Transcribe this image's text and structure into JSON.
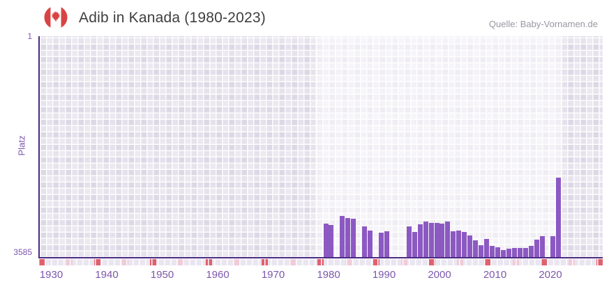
{
  "header": {
    "title": "Adib in Kanada (1980-2023)",
    "source": "Quelle: Baby-Vornamen.de"
  },
  "chart_data": {
    "type": "bar",
    "title": "Adib in Kanada (1980-2023)",
    "xlabel": "",
    "ylabel": "Platz",
    "y_axis": {
      "top_label": "1",
      "bottom_label": "3585",
      "min": 1,
      "max": 3585,
      "inverted": true,
      "note": "rank 1 at top, rank 3585 near baseline"
    },
    "x_ticks": [
      1930,
      1940,
      1950,
      1960,
      1970,
      1980,
      1990,
      2000,
      2010,
      2020
    ],
    "x_range": [
      1928,
      2031
    ],
    "grid": "checkered background, white gridlines",
    "legend": "none",
    "highlight_band_years": [
      1977.6,
      2022.1
    ],
    "series": [
      {
        "name": "Platz",
        "points": [
          {
            "year": 1980,
            "rank": 3105
          },
          {
            "year": 1981,
            "rank": 3120
          },
          {
            "year": 1983,
            "rank": 2970
          },
          {
            "year": 1984,
            "rank": 3010
          },
          {
            "year": 1985,
            "rank": 3020
          },
          {
            "year": 1987,
            "rank": 3145
          },
          {
            "year": 1988,
            "rank": 3215
          },
          {
            "year": 1990,
            "rank": 3255
          },
          {
            "year": 1991,
            "rank": 3225
          },
          {
            "year": 1995,
            "rank": 3145
          },
          {
            "year": 1996,
            "rank": 3240
          },
          {
            "year": 1997,
            "rank": 3110
          },
          {
            "year": 1998,
            "rank": 3060
          },
          {
            "year": 1999,
            "rank": 3090
          },
          {
            "year": 2000,
            "rank": 3090
          },
          {
            "year": 2001,
            "rank": 3095
          },
          {
            "year": 2002,
            "rank": 3060
          },
          {
            "year": 2003,
            "rank": 3225
          },
          {
            "year": 2004,
            "rank": 3210
          },
          {
            "year": 2005,
            "rank": 3235
          },
          {
            "year": 2006,
            "rank": 3300
          },
          {
            "year": 2007,
            "rank": 3375
          },
          {
            "year": 2008,
            "rank": 3460
          },
          {
            "year": 2009,
            "rank": 3355
          },
          {
            "year": 2010,
            "rank": 3475
          },
          {
            "year": 2011,
            "rank": 3490
          },
          {
            "year": 2012,
            "rank": 3540
          },
          {
            "year": 2013,
            "rank": 3510
          },
          {
            "year": 2014,
            "rank": 3500
          },
          {
            "year": 2015,
            "rank": 3500
          },
          {
            "year": 2016,
            "rank": 3500
          },
          {
            "year": 2017,
            "rank": 3475
          },
          {
            "year": 2018,
            "rank": 3365
          },
          {
            "year": 2019,
            "rank": 3310
          },
          {
            "year": 2021,
            "rank": 3310
          },
          {
            "year": 2022,
            "rank": 2340
          }
        ]
      }
    ]
  },
  "colors": {
    "bar": "#8c59c2",
    "axis_line": "#4a2b82",
    "tick_label": "#7d57ad",
    "title_text": "#3e3e3e",
    "source_text": "#9a96a0",
    "strip_red": "#e0606e",
    "strip_pink": "#f0ccd8",
    "flag_red": "#d84444"
  },
  "icons": {
    "flag": "canada-flag-icon"
  }
}
